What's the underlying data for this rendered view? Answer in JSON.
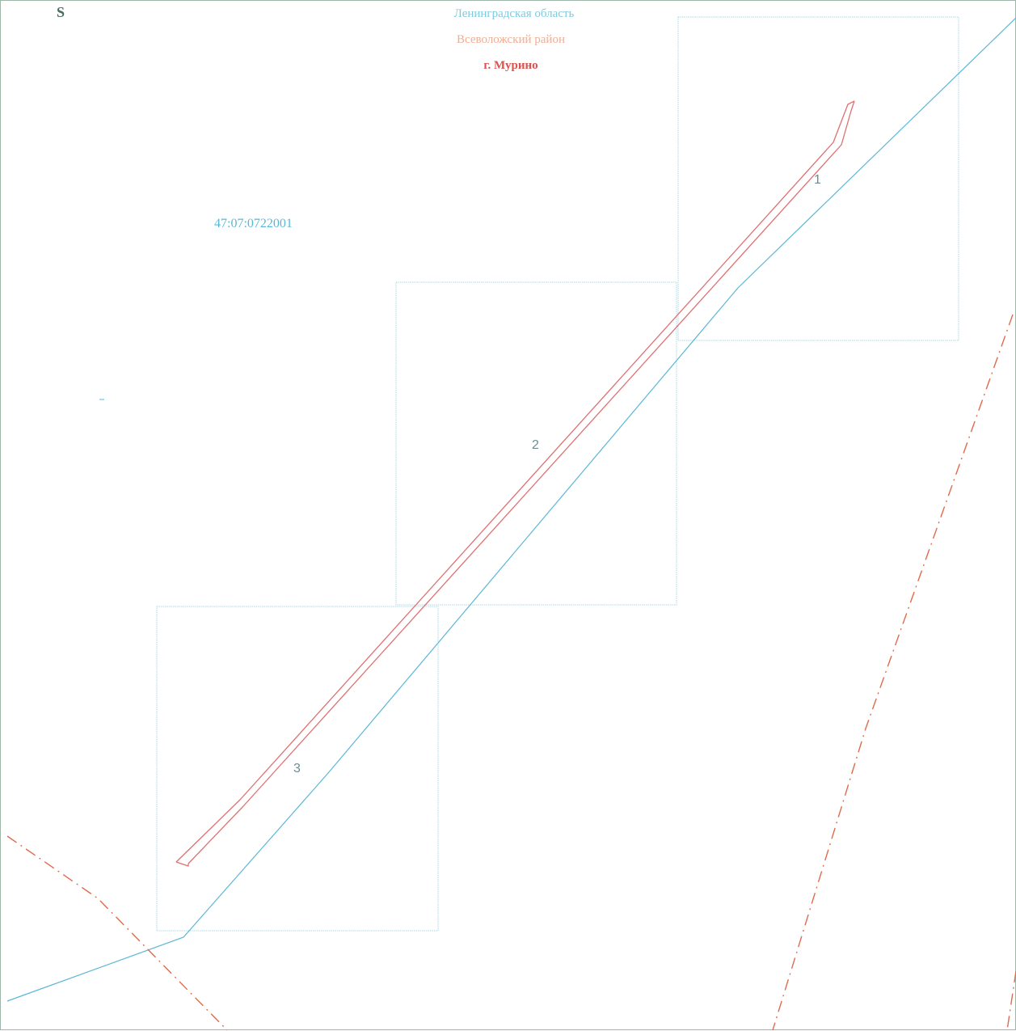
{
  "map": {
    "corner_letter": "S",
    "region": "Ленинградская область",
    "district": "Всеволожский район",
    "city": "г. Мурино",
    "cadastral_quarter": "47:07:0722001",
    "sheets": [
      {
        "number": "1"
      },
      {
        "number": "2"
      },
      {
        "number": "3"
      }
    ]
  },
  "colors": {
    "frame": "#9fb7a8",
    "sheet_border": "#a9d8e6",
    "quarter_boundary": "#5ab8d6",
    "object_outline": "#e07070",
    "city_boundary": "#e06a4c",
    "region_text": "#7ecbe0",
    "district_text": "#f0ad94",
    "city_text": "#d9534f"
  }
}
